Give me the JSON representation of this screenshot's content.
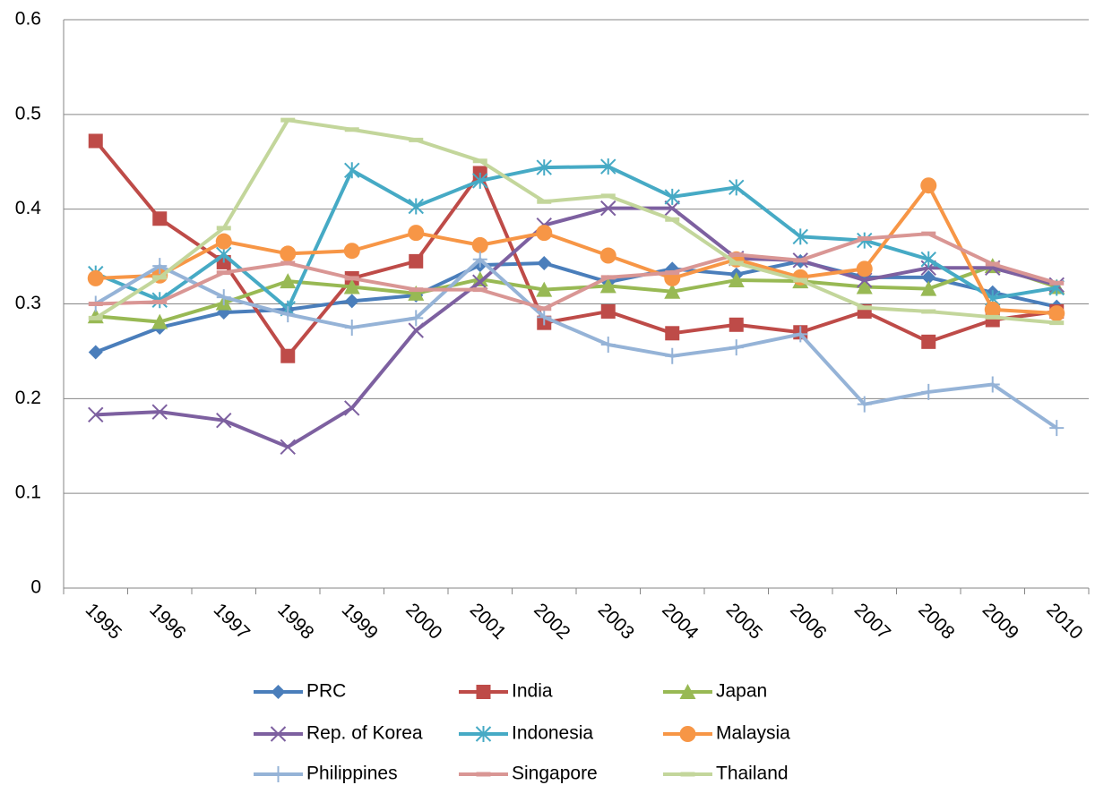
{
  "chart_data": {
    "type": "line",
    "categories": [
      "1995",
      "1996",
      "1997",
      "1998",
      "1999",
      "2000",
      "2001",
      "2002",
      "2003",
      "2004",
      "2005",
      "2006",
      "2007",
      "2008",
      "2009",
      "2010"
    ],
    "ylim": [
      0,
      0.6
    ],
    "yticks": [
      0,
      0.1,
      0.2,
      0.3,
      0.4,
      0.5,
      0.6
    ],
    "grid": true,
    "series": [
      {
        "name": "PRC",
        "color": "#4a7ebb",
        "marker": "diamond",
        "values": [
          0.249,
          0.275,
          0.291,
          0.294,
          0.303,
          0.309,
          0.341,
          0.343,
          0.323,
          0.337,
          0.331,
          0.345,
          0.328,
          0.328,
          0.312,
          0.297
        ]
      },
      {
        "name": "India",
        "color": "#be4b48",
        "marker": "square",
        "values": [
          0.472,
          0.39,
          0.344,
          0.245,
          0.327,
          0.345,
          0.438,
          0.28,
          0.292,
          0.269,
          0.278,
          0.27,
          0.292,
          0.26,
          0.283,
          0.292
        ]
      },
      {
        "name": "Japan",
        "color": "#98b954",
        "marker": "triangle",
        "values": [
          0.287,
          0.281,
          0.301,
          0.324,
          0.318,
          0.311,
          0.326,
          0.315,
          0.319,
          0.313,
          0.325,
          0.324,
          0.318,
          0.316,
          0.34,
          0.318
        ]
      },
      {
        "name": "Rep. of Korea",
        "color": "#7d60a0",
        "marker": "x",
        "values": [
          0.183,
          0.186,
          0.177,
          0.149,
          0.19,
          0.272,
          0.323,
          0.383,
          0.401,
          0.401,
          0.348,
          0.346,
          0.325,
          0.338,
          0.338,
          0.32
        ]
      },
      {
        "name": "Indonesia",
        "color": "#46aac5",
        "marker": "star",
        "values": [
          0.332,
          0.304,
          0.352,
          0.295,
          0.441,
          0.403,
          0.43,
          0.444,
          0.445,
          0.413,
          0.423,
          0.371,
          0.367,
          0.347,
          0.306,
          0.317
        ]
      },
      {
        "name": "Malaysia",
        "color": "#f79646",
        "marker": "circle",
        "values": [
          0.327,
          0.33,
          0.366,
          0.353,
          0.356,
          0.375,
          0.362,
          0.375,
          0.351,
          0.327,
          0.347,
          0.328,
          0.337,
          0.425,
          0.294,
          0.29
        ]
      },
      {
        "name": "Philippines",
        "color": "#95b3d7",
        "marker": "plus",
        "values": [
          0.3,
          0.34,
          0.307,
          0.289,
          0.275,
          0.285,
          0.347,
          0.286,
          0.257,
          0.245,
          0.254,
          0.268,
          0.194,
          0.207,
          0.215,
          0.169
        ]
      },
      {
        "name": "Singapore",
        "color": "#d99694",
        "marker": "dash",
        "values": [
          0.3,
          0.302,
          0.333,
          0.343,
          0.327,
          0.315,
          0.315,
          0.295,
          0.328,
          0.333,
          0.352,
          0.346,
          0.369,
          0.374,
          0.342,
          0.322
        ]
      },
      {
        "name": "Thailand",
        "color": "#c3d69b",
        "marker": "dash",
        "values": [
          0.285,
          0.328,
          0.38,
          0.494,
          0.484,
          0.473,
          0.451,
          0.408,
          0.414,
          0.389,
          0.343,
          0.325,
          0.296,
          0.292,
          0.286,
          0.28
        ]
      }
    ]
  }
}
